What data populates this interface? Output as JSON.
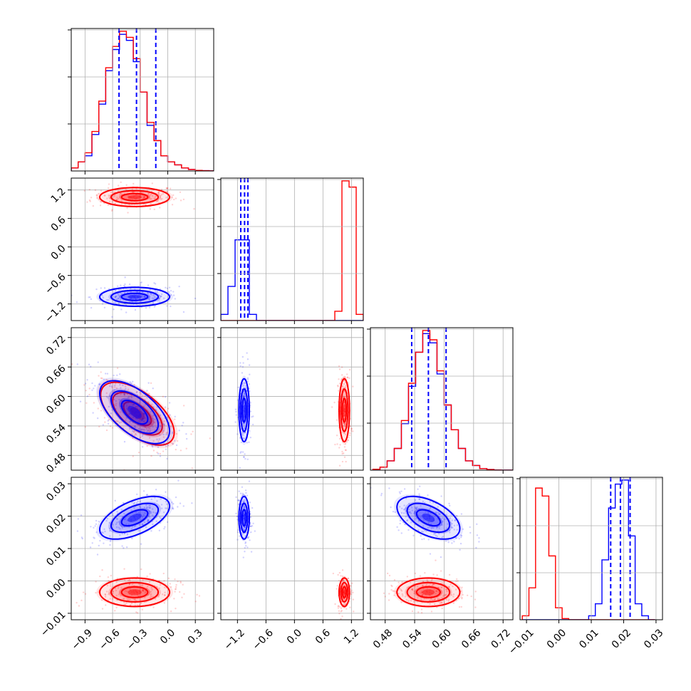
{
  "chart_data": {
    "type": "corner",
    "title": "",
    "grid": true,
    "series": [
      {
        "key": "blue",
        "color": "#0000ff"
      },
      {
        "key": "red",
        "color": "#ff0000"
      }
    ],
    "parameters": [
      {
        "index": 0,
        "range": [
          -1.05,
          0.5
        ],
        "ticks": [
          -0.9,
          -0.6,
          -0.3,
          0.0,
          0.3
        ],
        "tick_labels": [
          "−0.9",
          "−0.6",
          "−0.3",
          "0.0",
          "0.3"
        ],
        "hist_bins": [
          -1.0,
          -0.9,
          -0.8,
          -0.7,
          -0.6,
          -0.5,
          -0.4,
          -0.3,
          -0.2,
          -0.1,
          0.0,
          0.1,
          0.2,
          0.3,
          0.4,
          0.5
        ],
        "hist_edge_first": -1.05,
        "hist_edge_step": 0.075,
        "hist_counts": {
          "blue": [
            1,
            3,
            5,
            12,
            22,
            33,
            40,
            45,
            43,
            36,
            26,
            15,
            10,
            5,
            3,
            2,
            1,
            0.5,
            0.2,
            0.1,
            0.05
          ],
          "red": [
            1,
            3,
            6,
            13,
            23,
            34,
            41,
            46,
            44,
            37,
            26,
            16,
            10,
            5,
            3,
            2,
            1,
            0.5,
            0.2,
            0.1,
            0.05
          ]
        },
        "quantiles": [
          -0.53,
          -0.34,
          -0.13
        ]
      },
      {
        "index": 1,
        "range": [
          -1.55,
          1.45
        ],
        "ticks": [
          -1.2,
          -0.6,
          0.0,
          0.6,
          1.2
        ],
        "tick_labels": [
          "−1.2",
          "−0.6",
          "0.0",
          "0.6",
          "1.2"
        ],
        "hist_edge_first": -1.55,
        "hist_edge_step": 0.15,
        "hist_counts": {
          "blue": [
            2,
            11,
            26,
            26,
            2,
            0,
            0,
            0,
            0,
            0,
            0,
            0,
            0,
            0,
            0,
            0,
            0,
            0,
            0,
            0
          ],
          "red": [
            0,
            0,
            0,
            0,
            0,
            0,
            0,
            0,
            0,
            0,
            0,
            0,
            0,
            0,
            0,
            0,
            3,
            45,
            43,
            2
          ]
        },
        "quantiles": [
          -1.13,
          -1.05,
          -0.98
        ]
      },
      {
        "index": 2,
        "range": [
          0.45,
          0.74
        ],
        "ticks": [
          0.48,
          0.54,
          0.6,
          0.66,
          0.72
        ],
        "tick_labels": [
          "0.48",
          "0.54",
          "0.60",
          "0.66",
          "0.72"
        ],
        "hist_edge_first": 0.455,
        "hist_edge_step": 0.0145,
        "hist_counts": {
          "blue": [
            0.3,
            1,
            3,
            7,
            15,
            27,
            38,
            44,
            41,
            31,
            21,
            13,
            7,
            3,
            1.5,
            0.5,
            0.2,
            0.05,
            0.02,
            0.01
          ],
          "red": [
            0.3,
            1,
            3,
            7,
            16,
            28,
            38,
            45,
            42,
            32,
            21,
            13,
            7,
            3,
            1.5,
            0.5,
            0.2,
            0.05,
            0.02,
            0.01
          ]
        },
        "quantiles": [
          0.534,
          0.568,
          0.604
        ]
      },
      {
        "index": 3,
        "range": [
          -0.012,
          0.032
        ],
        "ticks": [
          -0.01,
          0.0,
          0.01,
          0.02,
          0.03
        ],
        "tick_labels": [
          "−0.01",
          "0.00",
          "0.01",
          "0.02",
          "0.03"
        ],
        "hist_edge_first": -0.0113,
        "hist_edge_step": 0.00205,
        "hist_counts": {
          "blue": [
            0,
            0,
            0,
            0,
            0,
            0,
            0,
            0,
            0,
            0,
            1,
            4,
            15,
            28,
            34,
            35,
            21,
            4,
            1,
            0
          ],
          "red": [
            1,
            8,
            33,
            31,
            16,
            3,
            0.3,
            0,
            0,
            0,
            0,
            0,
            0,
            0,
            0,
            0,
            0,
            0,
            0,
            0
          ]
        },
        "quantiles": [
          0.016,
          0.019,
          0.022
        ]
      }
    ],
    "pairs": [
      {
        "row": 1,
        "col": 0,
        "blue": {
          "center": [
            -0.36,
            -1.05
          ],
          "sigma": [
            0.19,
            0.1
          ],
          "rho": 0.0
        },
        "red": {
          "center": [
            -0.36,
            1.05
          ],
          "sigma": [
            0.19,
            0.1
          ],
          "rho": 0.0
        }
      },
      {
        "row": 2,
        "col": 0,
        "blue": {
          "center": [
            -0.36,
            0.568
          ],
          "sigma": [
            0.19,
            0.032
          ],
          "rho": -0.6
        },
        "red": {
          "center": [
            -0.33,
            0.565
          ],
          "sigma": [
            0.2,
            0.032
          ],
          "rho": -0.6
        }
      },
      {
        "row": 2,
        "col": 1,
        "blue": {
          "center": [
            -1.06,
            0.572
          ],
          "sigma": [
            0.055,
            0.032
          ],
          "rho": 0.0
        },
        "red": {
          "center": [
            1.05,
            0.572
          ],
          "sigma": [
            0.055,
            0.032
          ],
          "rho": 0.0
        }
      },
      {
        "row": 3,
        "col": 0,
        "blue": {
          "center": [
            -0.36,
            0.0195
          ],
          "sigma": [
            0.19,
            0.0033
          ],
          "rho": 0.55
        },
        "red": {
          "center": [
            -0.36,
            -0.0035
          ],
          "sigma": [
            0.19,
            0.0022
          ],
          "rho": 0.0
        }
      },
      {
        "row": 3,
        "col": 1,
        "blue": {
          "center": [
            -1.06,
            0.0195
          ],
          "sigma": [
            0.055,
            0.0033
          ],
          "rho": 0.0
        },
        "red": {
          "center": [
            1.05,
            -0.0035
          ],
          "sigma": [
            0.055,
            0.0022
          ],
          "rho": 0.0
        }
      },
      {
        "row": 3,
        "col": 2,
        "blue": {
          "center": [
            0.568,
            0.0195
          ],
          "sigma": [
            0.032,
            0.0033
          ],
          "rho": -0.5
        },
        "red": {
          "center": [
            0.568,
            -0.0035
          ],
          "sigma": [
            0.032,
            0.0022
          ],
          "rho": 0.0
        }
      }
    ]
  }
}
